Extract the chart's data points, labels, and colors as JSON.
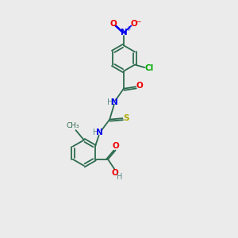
{
  "bg_color": "#ebebeb",
  "colors": {
    "C": "#2d6b4f",
    "N": "#0000ee",
    "O": "#ee0000",
    "S": "#aaaa00",
    "Cl": "#00aa00",
    "H": "#5b8a8a"
  },
  "lw": 1.3,
  "fs": 7.0,
  "ring_r": 0.55
}
